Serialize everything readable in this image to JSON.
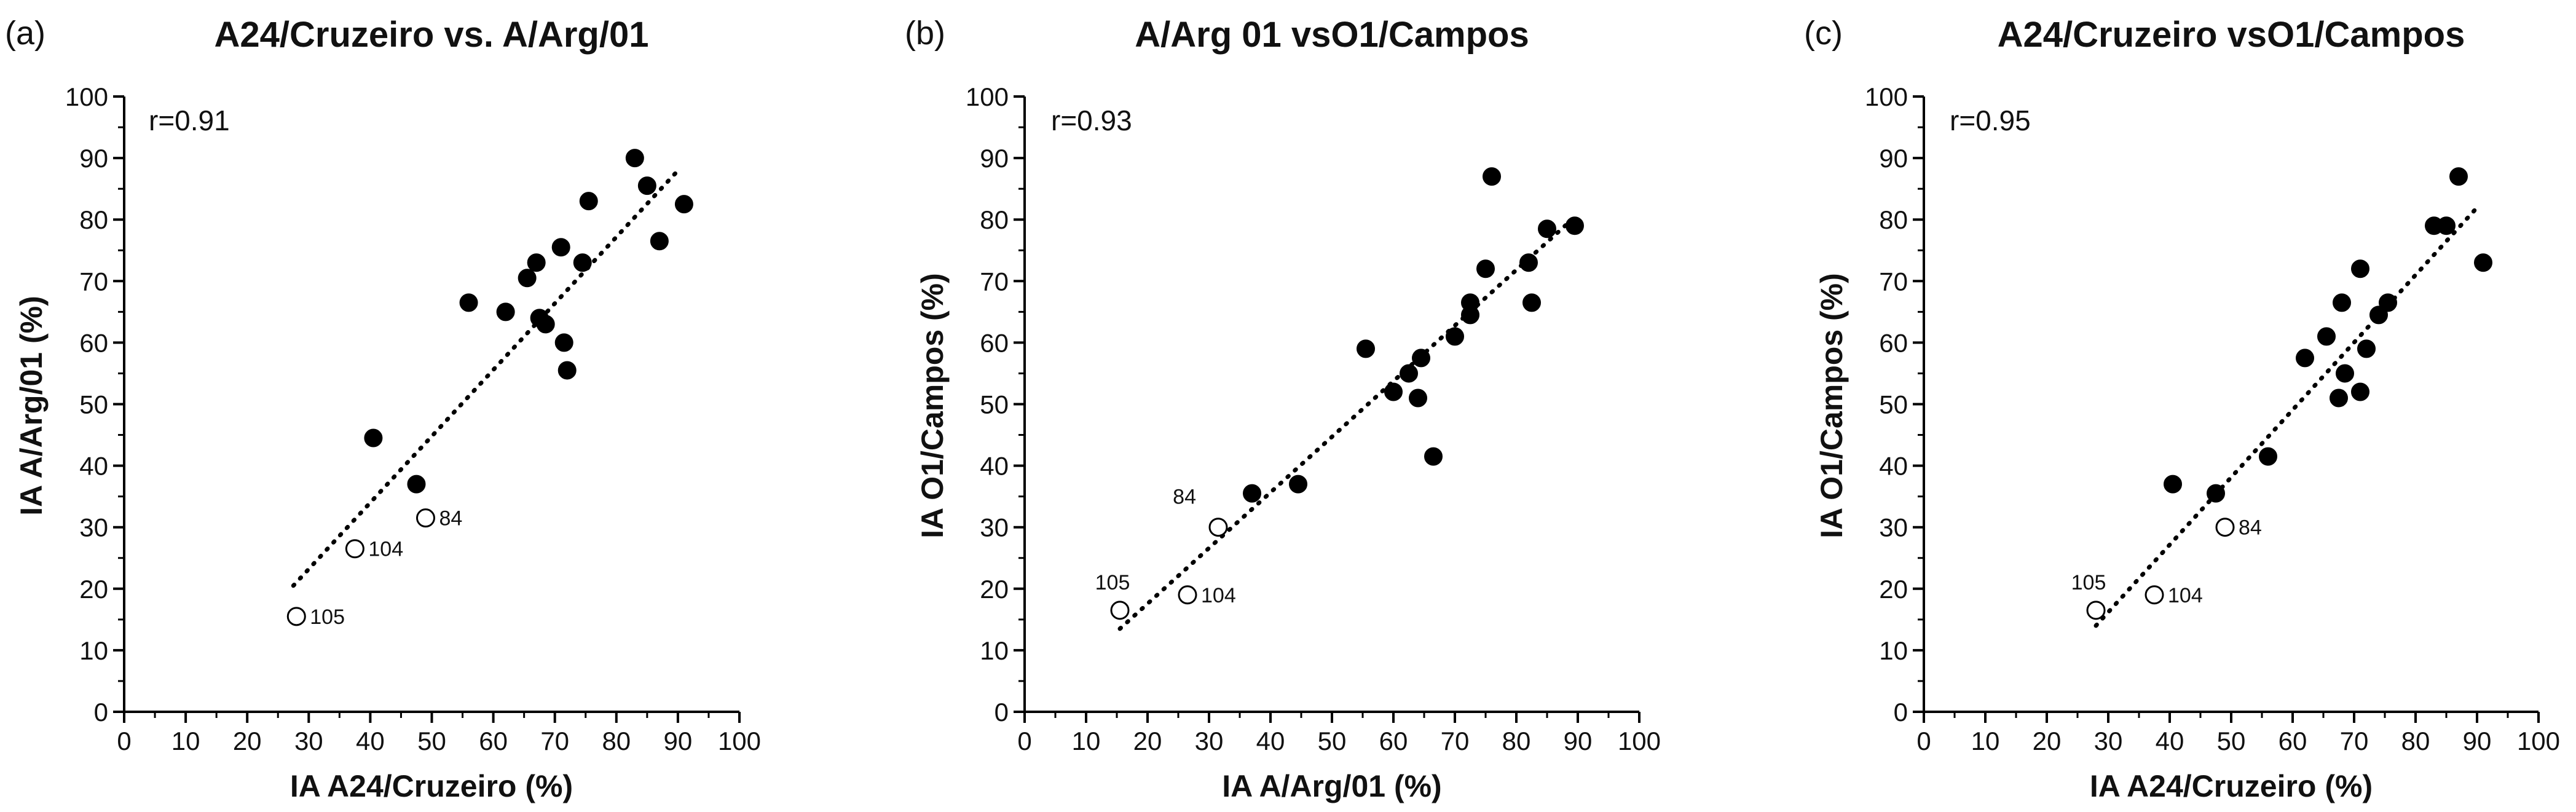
{
  "chart_data": [
    {
      "type": "scatter",
      "panel": "(a)",
      "title": "A24/Cruzeiro vs. A/Arg/01",
      "xlabel": "IA A24/Cruzeiro (%)",
      "ylabel": "IA A/Arg/01 (%)",
      "xlim": [
        0,
        100
      ],
      "ylim": [
        0,
        100
      ],
      "xticks": [
        "0",
        "10",
        "20",
        "30",
        "40",
        "50",
        "60",
        "70",
        "80",
        "90",
        "100"
      ],
      "yticks": [
        "0",
        "10",
        "20",
        "30",
        "40",
        "50",
        "60",
        "70",
        "80",
        "90",
        "100"
      ],
      "annotation": "r=0.91",
      "trendline": {
        "x": [
          27.5,
          90.5
        ],
        "y": [
          20.5,
          88.5
        ]
      },
      "series": [
        {
          "name": "filled",
          "x": [
            40.5,
            47.5,
            56,
            62,
            65.5,
            67,
            67.5,
            68.5,
            71,
            71.5,
            72,
            74.5,
            75.5,
            83,
            85,
            87,
            91
          ],
          "y": [
            44.5,
            37,
            66.5,
            65,
            70.5,
            73,
            64,
            63,
            75.5,
            60,
            55.5,
            73,
            83,
            90,
            85.5,
            76.5,
            82.5
          ]
        },
        {
          "name": "open",
          "x": [
            28,
            37.5,
            49
          ],
          "y": [
            15.5,
            26.5,
            31.5
          ],
          "labels": [
            "105",
            "104",
            "84"
          ]
        }
      ]
    },
    {
      "type": "scatter",
      "panel": "(b)",
      "title": "A/Arg 01 vsO1/Campos",
      "xlabel": "IA A/Arg/01 (%)",
      "ylabel": "IA O1/Campos (%)",
      "xlim": [
        0,
        100
      ],
      "ylim": [
        0,
        100
      ],
      "xticks": [
        "0",
        "10",
        "20",
        "30",
        "40",
        "50",
        "60",
        "70",
        "80",
        "90",
        "100"
      ],
      "yticks": [
        "0",
        "10",
        "20",
        "30",
        "40",
        "50",
        "60",
        "70",
        "80",
        "90",
        "100"
      ],
      "annotation": "r=0.93",
      "trendline": {
        "x": [
          15.5,
          88.5
        ],
        "y": [
          13.5,
          79.5
        ]
      },
      "series": [
        {
          "name": "filled",
          "x": [
            37,
            44.5,
            55.5,
            60,
            62.5,
            64,
            64.5,
            66.5,
            70,
            72.5,
            72.5,
            75,
            76,
            82,
            82.5,
            85,
            89.5
          ],
          "y": [
            35.5,
            37,
            59,
            52,
            55,
            51,
            57.5,
            41.5,
            61,
            64.5,
            66.5,
            72,
            87,
            73,
            66.5,
            78.5,
            79
          ]
        },
        {
          "name": "open",
          "x": [
            15.5,
            26.5,
            31.5
          ],
          "y": [
            16.5,
            19,
            30
          ],
          "labels": [
            "105",
            "104",
            "84"
          ]
        }
      ]
    },
    {
      "type": "scatter",
      "panel": "(c)",
      "title": "A24/Cruzeiro vsO1/Campos",
      "xlabel": "IA A24/Cruzeiro (%)",
      "ylabel": "IA O1/Campos (%)",
      "xlim": [
        0,
        100
      ],
      "ylim": [
        0,
        100
      ],
      "xticks": [
        "0",
        "10",
        "20",
        "30",
        "40",
        "50",
        "60",
        "70",
        "80",
        "90",
        "100"
      ],
      "yticks": [
        "0",
        "10",
        "20",
        "30",
        "40",
        "50",
        "60",
        "70",
        "80",
        "90",
        "100"
      ],
      "annotation": "r=0.95",
      "trendline": {
        "x": [
          28,
          90.5
        ],
        "y": [
          14,
          82.5
        ]
      },
      "series": [
        {
          "name": "filled",
          "x": [
            40.5,
            47.5,
            56,
            62,
            65.5,
            67.5,
            68,
            68.5,
            71,
            71,
            72,
            74,
            75.5,
            83,
            85,
            87,
            91
          ],
          "y": [
            37,
            35.5,
            41.5,
            57.5,
            61,
            51,
            66.5,
            55,
            52,
            72,
            59,
            64.5,
            66.5,
            79,
            79,
            87,
            73
          ]
        },
        {
          "name": "open",
          "x": [
            28,
            37.5,
            49
          ],
          "y": [
            16.5,
            19,
            30
          ],
          "labels": [
            "105",
            "104",
            "84"
          ]
        }
      ]
    }
  ]
}
